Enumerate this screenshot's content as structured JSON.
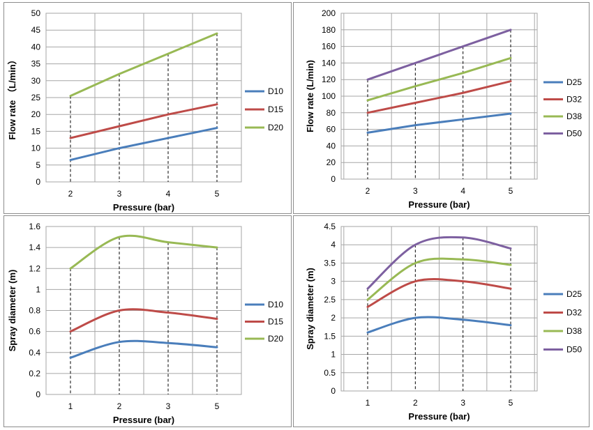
{
  "colors": {
    "D10": "#4a7ebb",
    "D15": "#be4b48",
    "D20": "#98b954",
    "D25": "#4a7ebb",
    "D32": "#be4b48",
    "D38": "#98b954",
    "D50": "#7d60a0",
    "grid": "#a6a6a6"
  },
  "chart_data": [
    {
      "type": "line",
      "smooth": false,
      "xlabel": "Pressure (bar)",
      "ylabel": "Flow rate （L/min）",
      "categories": [
        "2",
        "3",
        "4",
        "5"
      ],
      "ylim": [
        0,
        50
      ],
      "ystep": 5,
      "series": [
        {
          "name": "D10",
          "values": [
            6.5,
            10,
            13,
            16
          ]
        },
        {
          "name": "D15",
          "values": [
            13,
            16.5,
            20,
            23
          ]
        },
        {
          "name": "D20",
          "values": [
            25.5,
            32,
            38,
            44
          ]
        }
      ],
      "legend": "right",
      "grid": true
    },
    {
      "type": "line",
      "smooth": false,
      "xlabel": "Pressure (bar)",
      "ylabel": "Flow rate (L/min)",
      "categories": [
        "2",
        "3",
        "4",
        "5"
      ],
      "ylim": [
        0,
        200
      ],
      "ystep": 20,
      "series": [
        {
          "name": "D25",
          "values": [
            56,
            65,
            72,
            79
          ]
        },
        {
          "name": "D32",
          "values": [
            80,
            92,
            104,
            118
          ]
        },
        {
          "name": "D38",
          "values": [
            95,
            112,
            128,
            146
          ]
        },
        {
          "name": "D50",
          "values": [
            120,
            140,
            160,
            180
          ]
        }
      ],
      "legend": "right",
      "grid": true
    },
    {
      "type": "line",
      "smooth": true,
      "xlabel": "Pressure (bar)",
      "ylabel": "Spray diameter (m)",
      "categories": [
        "1",
        "2",
        "3",
        "5"
      ],
      "ylim": [
        0,
        1.6
      ],
      "ystep": 0.2,
      "series": [
        {
          "name": "D10",
          "values": [
            0.35,
            0.5,
            0.49,
            0.45
          ]
        },
        {
          "name": "D15",
          "values": [
            0.6,
            0.8,
            0.78,
            0.72
          ]
        },
        {
          "name": "D20",
          "values": [
            1.2,
            1.5,
            1.45,
            1.4
          ]
        }
      ],
      "legend": "right",
      "grid": true
    },
    {
      "type": "line",
      "smooth": true,
      "xlabel": "Pressure (bar)",
      "ylabel": "Spray diameter (m)",
      "categories": [
        "1",
        "2",
        "3",
        "5"
      ],
      "ylim": [
        0,
        4.5
      ],
      "ystep": 0.5,
      "series": [
        {
          "name": "D25",
          "values": [
            1.6,
            2.0,
            1.95,
            1.8
          ]
        },
        {
          "name": "D32",
          "values": [
            2.3,
            3.0,
            3.0,
            2.8
          ]
        },
        {
          "name": "D38",
          "values": [
            2.5,
            3.5,
            3.6,
            3.45
          ]
        },
        {
          "name": "D50",
          "values": [
            2.8,
            4.0,
            4.2,
            3.9
          ]
        }
      ],
      "legend": "right",
      "grid": true
    }
  ]
}
